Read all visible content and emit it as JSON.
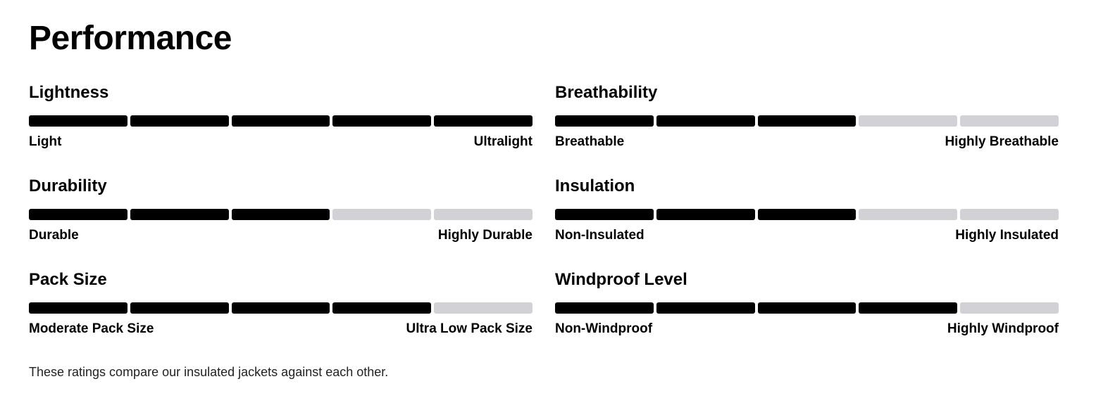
{
  "title": "Performance",
  "scale": 5,
  "ratings": [
    {
      "name": "Lightness",
      "value": 5,
      "min_label": "Light",
      "max_label": "Ultralight"
    },
    {
      "name": "Breathability",
      "value": 3,
      "min_label": "Breathable",
      "max_label": "Highly Breathable"
    },
    {
      "name": "Durability",
      "value": 3,
      "min_label": "Durable",
      "max_label": "Highly Durable"
    },
    {
      "name": "Insulation",
      "value": 3,
      "min_label": "Non-Insulated",
      "max_label": "Highly Insulated"
    },
    {
      "name": "Pack Size",
      "value": 4,
      "min_label": "Moderate Pack Size",
      "max_label": "Ultra Low Pack Size"
    },
    {
      "name": "Windproof Level",
      "value": 4,
      "min_label": "Non-Windproof",
      "max_label": "Highly Windproof"
    }
  ],
  "note": "These ratings compare our insulated jackets against each other."
}
